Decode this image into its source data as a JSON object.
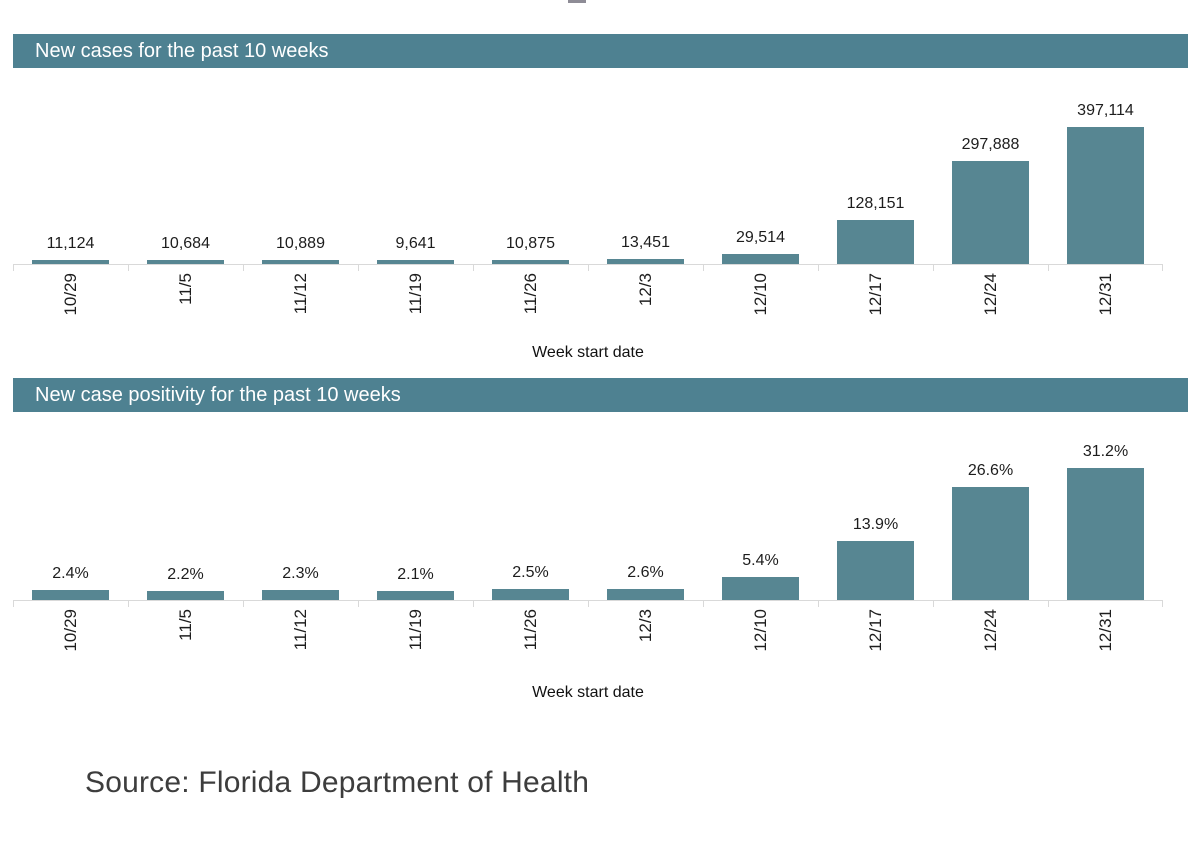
{
  "chart_data": [
    {
      "type": "bar",
      "title": "New cases for the past 10 weeks",
      "xlabel": "Week start date",
      "ylabel": "",
      "categories": [
        "10/29",
        "11/5",
        "11/12",
        "11/19",
        "11/26",
        "12/3",
        "12/10",
        "12/17",
        "12/24",
        "12/31"
      ],
      "values": [
        11124,
        10684,
        10889,
        9641,
        10875,
        13451,
        29514,
        128151,
        297888,
        397114
      ],
      "value_labels": [
        "11,124",
        "10,684",
        "10,889",
        "9,641",
        "10,875",
        "13,451",
        "29,514",
        "128,151",
        "297,888",
        "397,114"
      ],
      "ylim": [
        0,
        400000
      ],
      "grid": false,
      "legend": "none",
      "x_tick_rotation": 90
    },
    {
      "type": "bar",
      "title": "New case positivity for the past 10 weeks",
      "xlabel": "Week start date",
      "ylabel": "",
      "categories": [
        "10/29",
        "11/5",
        "11/12",
        "11/19",
        "11/26",
        "12/3",
        "12/10",
        "12/17",
        "12/24",
        "12/31"
      ],
      "values": [
        2.4,
        2.2,
        2.3,
        2.1,
        2.5,
        2.6,
        5.4,
        13.9,
        26.6,
        31.2
      ],
      "value_labels": [
        "2.4%",
        "2.2%",
        "2.3%",
        "2.1%",
        "2.5%",
        "2.6%",
        "5.4%",
        "13.9%",
        "26.6%",
        "31.2%"
      ],
      "ylim": [
        0,
        32
      ],
      "grid": false,
      "legend": "none",
      "x_tick_rotation": 90
    }
  ],
  "source_note": "Source: Florida Department of Health",
  "colors": {
    "bar": "#578692",
    "header_bg": "#4e8191",
    "header_text": "#ffffff",
    "axis_line": "#d9d9d9",
    "label_text": "#1d1d1d",
    "source_text": "#3d3d3d"
  },
  "misc": {
    "top_fragment_color": "#8e8c96"
  }
}
